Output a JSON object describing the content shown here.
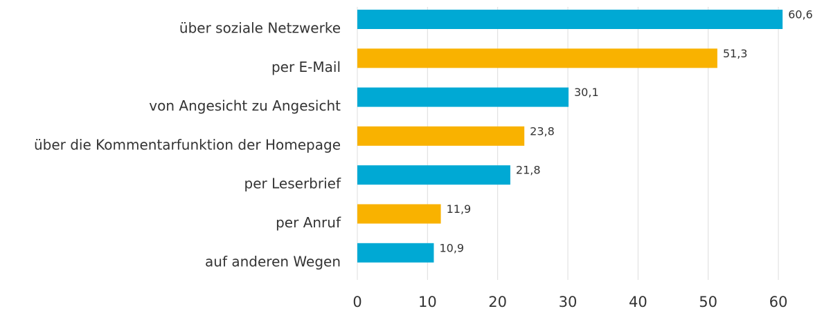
{
  "chart_data": {
    "type": "barh",
    "categories": [
      "über soziale Netzwerke",
      "per E-Mail",
      "von Angesicht zu Angesicht",
      "über die Kommentarfunktion der Homepage",
      "per Leserbrief",
      "per Anruf",
      "auf anderen Wegen"
    ],
    "values": [
      60.6,
      51.3,
      30.1,
      23.8,
      21.8,
      11.9,
      10.9
    ],
    "value_labels": [
      "60,6",
      "51,3",
      "30,1",
      "23,8",
      "21,8",
      "11,9",
      "10,9"
    ],
    "colors": [
      "#00a9d4",
      "#f9b200",
      "#00a9d4",
      "#f9b200",
      "#00a9d4",
      "#f9b200",
      "#00a9d4"
    ],
    "xlim": [
      0,
      60
    ],
    "xticks": [
      0,
      10,
      20,
      30,
      40,
      50,
      60
    ],
    "grid": true
  }
}
